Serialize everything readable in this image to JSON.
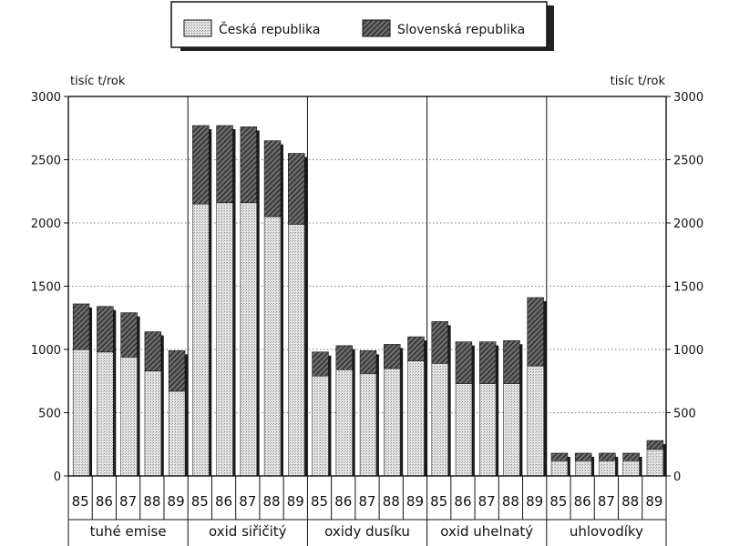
{
  "chart_data": {
    "type": "bar",
    "stacked": true,
    "legend": {
      "position": "top-center",
      "entries": [
        "Česká republika",
        "Slovenská republika"
      ]
    },
    "y_unit_left": "tisíc t/rok",
    "y_unit_right": "tisíc t/rok",
    "ylim": [
      0,
      3000
    ],
    "yticks": [
      0,
      500,
      1000,
      1500,
      2000,
      2500,
      3000
    ],
    "grid": "horizontal dotted",
    "colors": {
      "cz": "#d6d6d6",
      "sk": "#555555"
    },
    "groups": [
      {
        "label": "tuhé emise",
        "years": [
          "85",
          "86",
          "87",
          "88",
          "89"
        ],
        "cz": [
          1000,
          980,
          940,
          830,
          670
        ],
        "sk": [
          360,
          360,
          350,
          310,
          320
        ]
      },
      {
        "label": "oxid siřičitý",
        "years": [
          "85",
          "86",
          "87",
          "88",
          "89"
        ],
        "cz": [
          2150,
          2160,
          2160,
          2050,
          1990
        ],
        "sk": [
          620,
          610,
          600,
          600,
          560
        ]
      },
      {
        "label": "oxidy dusíku",
        "years": [
          "85",
          "86",
          "87",
          "88",
          "89"
        ],
        "cz": [
          790,
          840,
          810,
          850,
          910
        ],
        "sk": [
          190,
          190,
          180,
          190,
          190
        ]
      },
      {
        "label": "oxid uhelnatý",
        "years": [
          "85",
          "86",
          "87",
          "88",
          "89"
        ],
        "cz": [
          890,
          730,
          730,
          730,
          870
        ],
        "sk": [
          330,
          330,
          330,
          340,
          540
        ]
      },
      {
        "label": "uhlovodíky",
        "years": [
          "85",
          "86",
          "87",
          "88",
          "89"
        ],
        "cz": [
          120,
          120,
          120,
          120,
          210
        ],
        "sk": [
          60,
          60,
          60,
          60,
          70
        ]
      }
    ]
  }
}
